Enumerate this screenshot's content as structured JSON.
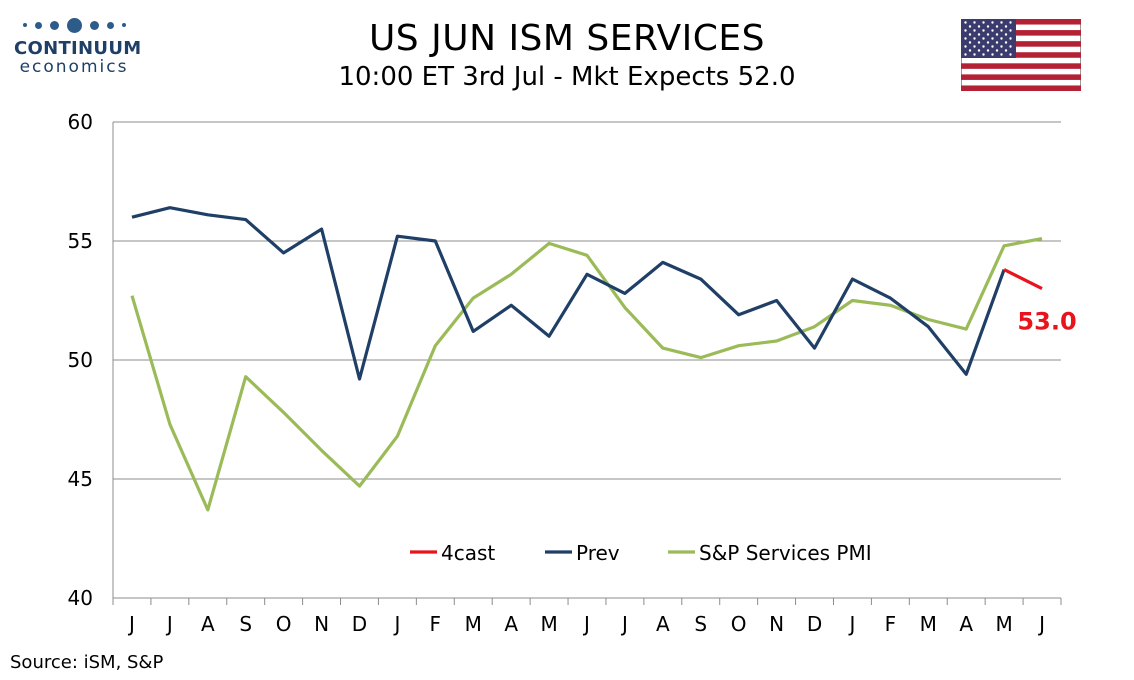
{
  "header": {
    "title": "US JUN ISM SERVICES",
    "subtitle": "10:00 ET 3rd Jul - Mkt Expects 52.0"
  },
  "logo": {
    "brand": "CONTINUUM",
    "sub": "economics",
    "color": "#1f3f66"
  },
  "source": "Source: iSM, S&P",
  "flag": {
    "name": "us-flag-icon"
  },
  "chart_data": {
    "type": "line",
    "categories": [
      "J",
      "J",
      "A",
      "S",
      "O",
      "N",
      "D",
      "J",
      "F",
      "M",
      "A",
      "M",
      "J",
      "J",
      "A",
      "S",
      "O",
      "N",
      "D",
      "J",
      "F",
      "M",
      "A",
      "M",
      "J"
    ],
    "ylim": [
      40,
      60
    ],
    "yticks": [
      40,
      45,
      50,
      55,
      60
    ],
    "grid": true,
    "legend_position": "bottom-center",
    "series": [
      {
        "name": "4cast",
        "color": "#e8131b",
        "values": [
          null,
          null,
          null,
          null,
          null,
          null,
          null,
          null,
          null,
          null,
          null,
          null,
          null,
          null,
          null,
          null,
          null,
          null,
          null,
          null,
          null,
          null,
          null,
          53.8,
          53.0
        ]
      },
      {
        "name": "Prev",
        "color": "#1f3f66",
        "values": [
          56.0,
          56.4,
          56.1,
          55.9,
          54.5,
          55.5,
          49.2,
          55.2,
          55.0,
          51.2,
          52.3,
          51.0,
          53.6,
          52.8,
          54.1,
          53.4,
          51.9,
          52.5,
          50.5,
          53.4,
          52.6,
          51.4,
          49.4,
          53.8,
          null
        ]
      },
      {
        "name": "S&P Services PMI",
        "color": "#9bbb59",
        "values": [
          52.7,
          47.3,
          43.7,
          49.3,
          47.8,
          46.2,
          44.7,
          46.8,
          50.6,
          52.6,
          53.6,
          54.9,
          54.4,
          52.2,
          50.5,
          50.1,
          50.6,
          50.8,
          51.4,
          52.5,
          52.3,
          51.7,
          51.3,
          54.8,
          55.1
        ]
      }
    ],
    "annotation": {
      "text": "53.0",
      "series": "4cast",
      "color": "#e8131b"
    }
  }
}
